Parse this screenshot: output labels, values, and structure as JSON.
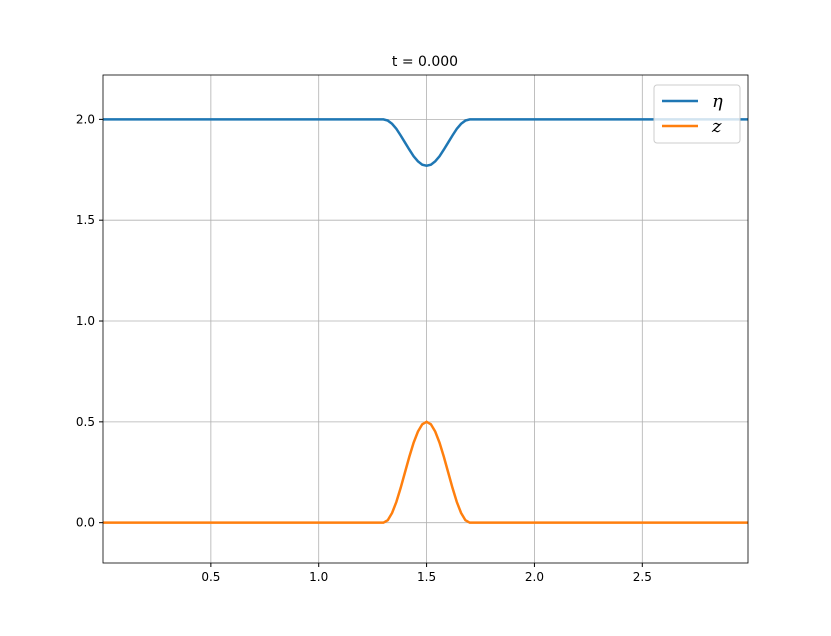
{
  "chart_data": {
    "type": "line",
    "title": "t = 0.000",
    "x": [
      0,
      1.3,
      1.32,
      1.34,
      1.36,
      1.38,
      1.4,
      1.42,
      1.44,
      1.46,
      1.48,
      1.5,
      1.52,
      1.54,
      1.56,
      1.58,
      1.6,
      1.62,
      1.64,
      1.66,
      1.68,
      1.7,
      2.99
    ],
    "series": [
      {
        "name": "η",
        "color": "#1f77b4",
        "values": [
          2.0,
          2.0,
          1.994,
          1.978,
          1.953,
          1.92,
          1.885,
          1.85,
          1.817,
          1.792,
          1.775,
          1.77,
          1.775,
          1.792,
          1.817,
          1.85,
          1.885,
          1.92,
          1.953,
          1.978,
          1.994,
          2.0,
          2.0
        ]
      },
      {
        "name": "z",
        "color": "#ff7f0e",
        "values": [
          0,
          0,
          0.012,
          0.048,
          0.103,
          0.173,
          0.25,
          0.327,
          0.397,
          0.452,
          0.488,
          0.5,
          0.488,
          0.452,
          0.397,
          0.327,
          0.25,
          0.173,
          0.103,
          0.048,
          0.012,
          0,
          0
        ]
      }
    ],
    "xlim": [
      0,
      2.99
    ],
    "ylim": [
      -0.2,
      2.22
    ],
    "xticks": [
      0.5,
      1.0,
      1.5,
      2.0,
      2.5
    ],
    "yticks": [
      0.0,
      0.5,
      1.0,
      1.5,
      2.0
    ],
    "grid": true,
    "legend": "upper right"
  }
}
